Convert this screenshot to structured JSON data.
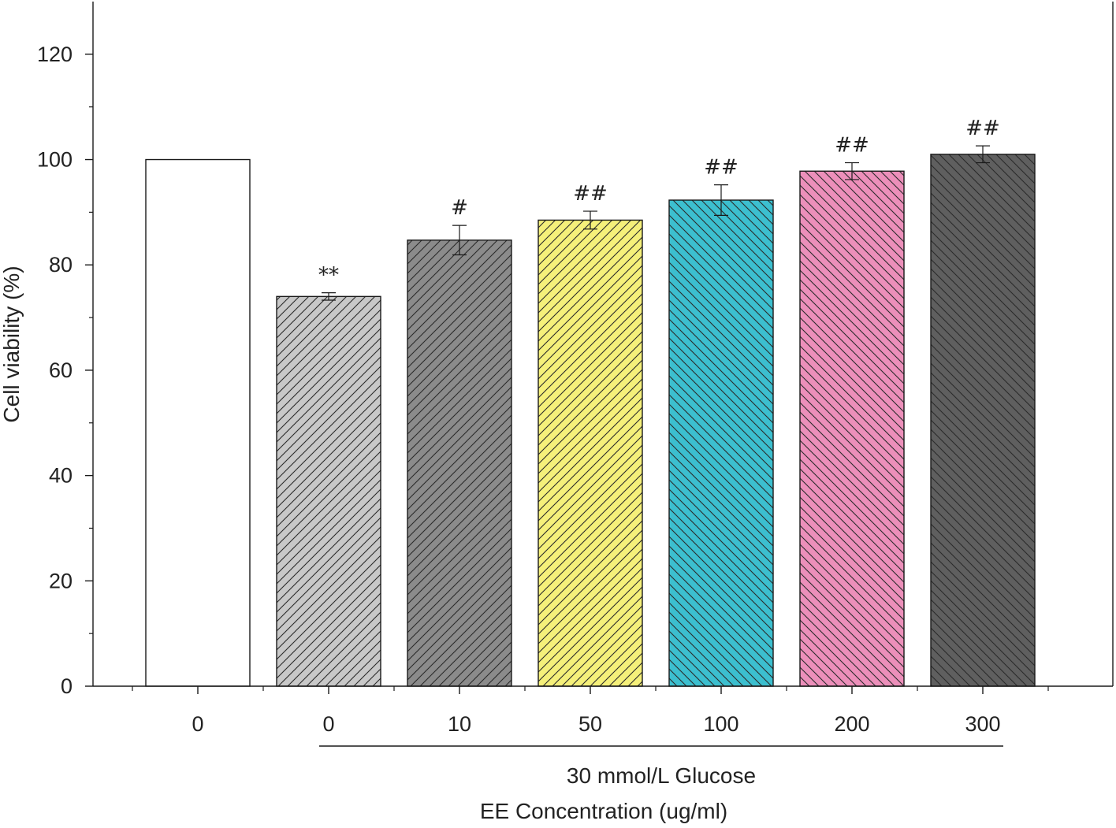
{
  "chart_data": {
    "type": "bar",
    "categories": [
      "0",
      "0",
      "10",
      "50",
      "100",
      "200",
      "300"
    ],
    "values": [
      100,
      74,
      84.7,
      88.5,
      92.3,
      97.8,
      101.0
    ],
    "errors": [
      0,
      0.7,
      2.8,
      1.7,
      2.9,
      1.6,
      1.6
    ],
    "significance": [
      "",
      "**",
      "#",
      "##",
      "##",
      "##",
      "##"
    ],
    "colors": [
      "#ffffff",
      "#c8c8c8",
      "#8b8b8b",
      "#f5f07a",
      "#3cbfcf",
      "#ec8fba",
      "#5f5f5f"
    ],
    "hatch": [
      "none",
      "forward",
      "forward",
      "forward",
      "back",
      "back",
      "back"
    ],
    "ylabel": "Cell viability (%)",
    "xlabel": "EE Concentration (ug/ml)",
    "group_label": "30 mmol/L Glucose",
    "ylim": [
      0,
      130
    ],
    "yticks": [
      0,
      20,
      40,
      60,
      80,
      100,
      120
    ],
    "grid": false
  }
}
